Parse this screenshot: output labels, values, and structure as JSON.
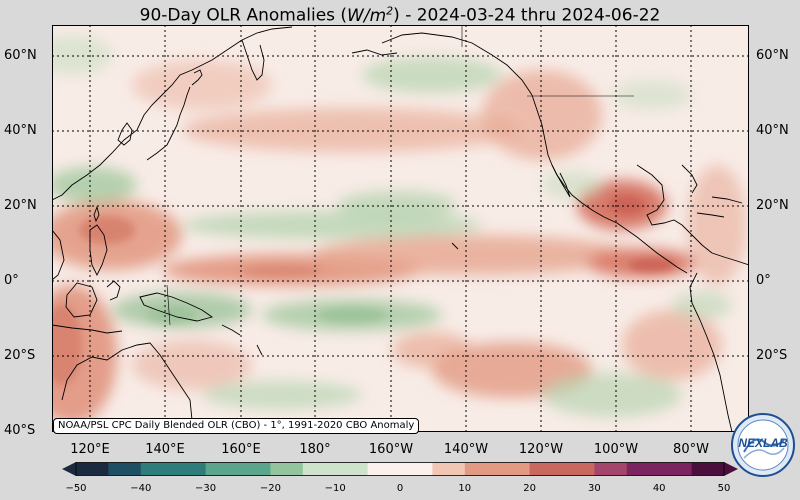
{
  "title": {
    "prefix": "90-Day OLR Anomalies (",
    "units": "W/m",
    "units_exp": "2",
    "suffix": ") - 2024-03-24 thru 2024-06-22"
  },
  "source_note": "NOAA/PSL CPC Daily Blended OLR (CBO) - 1°, 1991-2020 CBO Anomaly",
  "logo_text": "NEXLAB",
  "lat_labels_left": [
    "60°N",
    "40°N",
    "20°N",
    "0°",
    "20°S",
    "40°S"
  ],
  "lat_labels_right": [
    "60°N",
    "40°N",
    "20°N",
    "0°",
    "20°S"
  ],
  "lon_labels": [
    "120°E",
    "140°E",
    "160°E",
    "180°",
    "160°W",
    "140°W",
    "120°W",
    "100°W",
    "80°W"
  ],
  "colorbar": {
    "ticks": [
      "−50",
      "−40",
      "−30",
      "−20",
      "−10",
      "0",
      "10",
      "20",
      "30",
      "40",
      "50"
    ],
    "min": -50,
    "max": 50,
    "colors": [
      "#1c2a3f",
      "#1f4f63",
      "#2f7d7b",
      "#5aa58b",
      "#93c49d",
      "#cfe3cc",
      "#fbf2ee",
      "#f1c7b4",
      "#e29a83",
      "#c8685f",
      "#a4456b",
      "#7a2460",
      "#4a0f3d"
    ]
  },
  "map": {
    "lon_range": [
      "110°E",
      "70°W"
    ],
    "lat_range": [
      "40°S",
      "68°N"
    ],
    "colors": {
      "ocean_base": "#f8ece7",
      "positive": "#e4a08a",
      "positive_strong": "#cf6e5c",
      "negative": "#a9cba5",
      "frame_bg": "#d9d9d9"
    }
  }
}
